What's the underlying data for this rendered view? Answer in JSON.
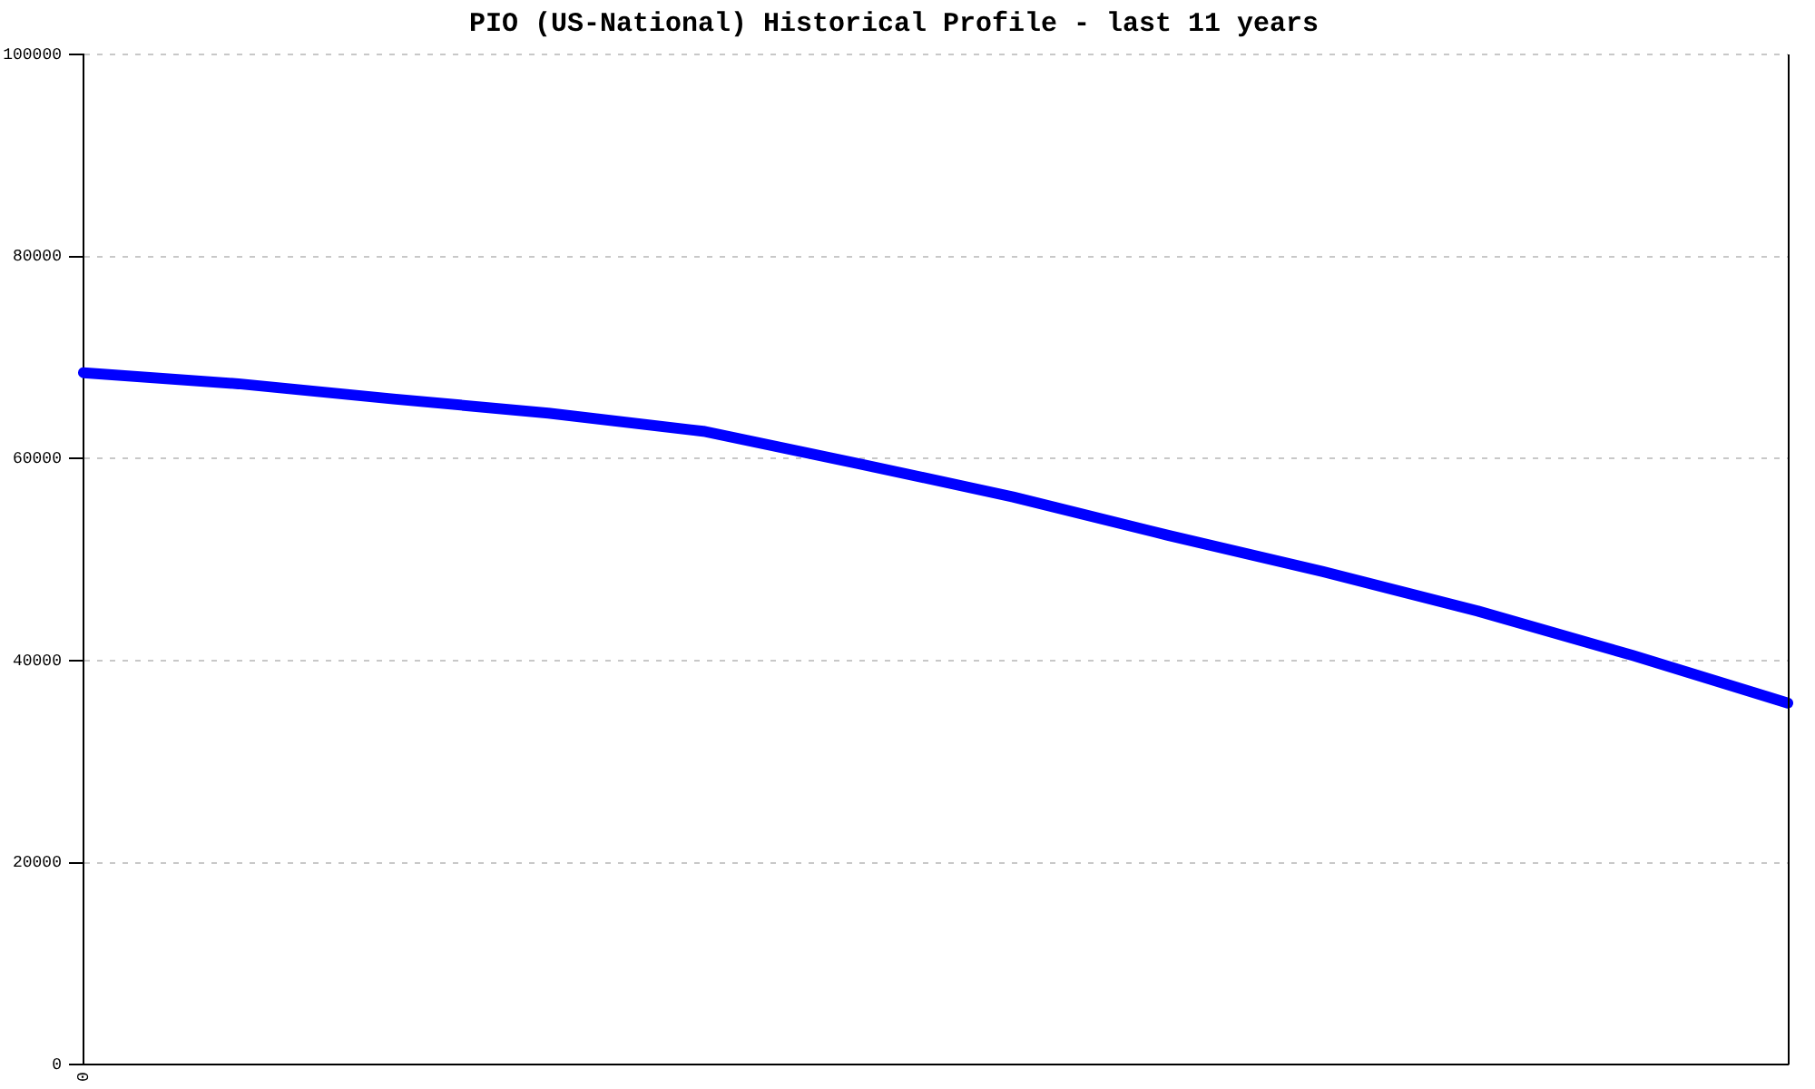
{
  "chart_data": {
    "type": "line",
    "title": "PIO (US-National) Historical Profile - last 11 years",
    "categories": [
      "0",
      null,
      null,
      null,
      null,
      null,
      null,
      null,
      null,
      null,
      null,
      null
    ],
    "series": [
      {
        "color": "#0000ff",
        "values": [
          68500,
          67400,
          65900,
          64500,
          62700,
          59500,
          56200,
          52400,
          48800,
          44900,
          40500,
          35800
        ]
      }
    ],
    "ylim": [
      0,
      100000
    ],
    "yticks": [
      0,
      20000,
      40000,
      60000,
      80000,
      100000
    ],
    "grid": "y",
    "legend": false,
    "marker": "none",
    "line_style": "solid"
  }
}
